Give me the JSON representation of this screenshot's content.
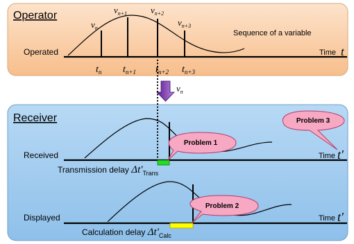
{
  "operator": {
    "title": "Operator",
    "row_label": "Operated",
    "time_label": "Time",
    "time_symbol": "t",
    "curve_label": "Sequence of a variable",
    "values": [
      {
        "base": "v",
        "sub": "n"
      },
      {
        "base": "v",
        "sub": "n+1"
      },
      {
        "base": "v",
        "sub": "n+2"
      },
      {
        "base": "v",
        "sub": "n+3"
      }
    ],
    "times": [
      {
        "base": "t",
        "sub": "n"
      },
      {
        "base": "t",
        "sub": "n+1"
      },
      {
        "base": "t",
        "sub": "n+2"
      },
      {
        "base": "t",
        "sub": "n+3"
      }
    ]
  },
  "transfer": {
    "base": "v",
    "sub": "n"
  },
  "receiver": {
    "title": "Receiver",
    "time_label": "Time",
    "time_symbol": "t'",
    "rows": [
      {
        "label": "Received",
        "delay_label": "Transmission delay",
        "delay_symbol": "Δt'",
        "delay_sub": "Trans",
        "problem": "Problem 1"
      },
      {
        "label": "Displayed",
        "delay_label": "Calculation delay",
        "delay_symbol": "Δt'",
        "delay_sub": "Calc",
        "problem": "Problem 2"
      }
    ],
    "problem_3": "Problem 3"
  },
  "colors": {
    "operator_bg": "#f9c89a",
    "receiver_bg": "#9ac8ee",
    "callout": "#f7a8c2",
    "trans_delay": "#22dd22",
    "calc_delay": "#ffff00"
  }
}
